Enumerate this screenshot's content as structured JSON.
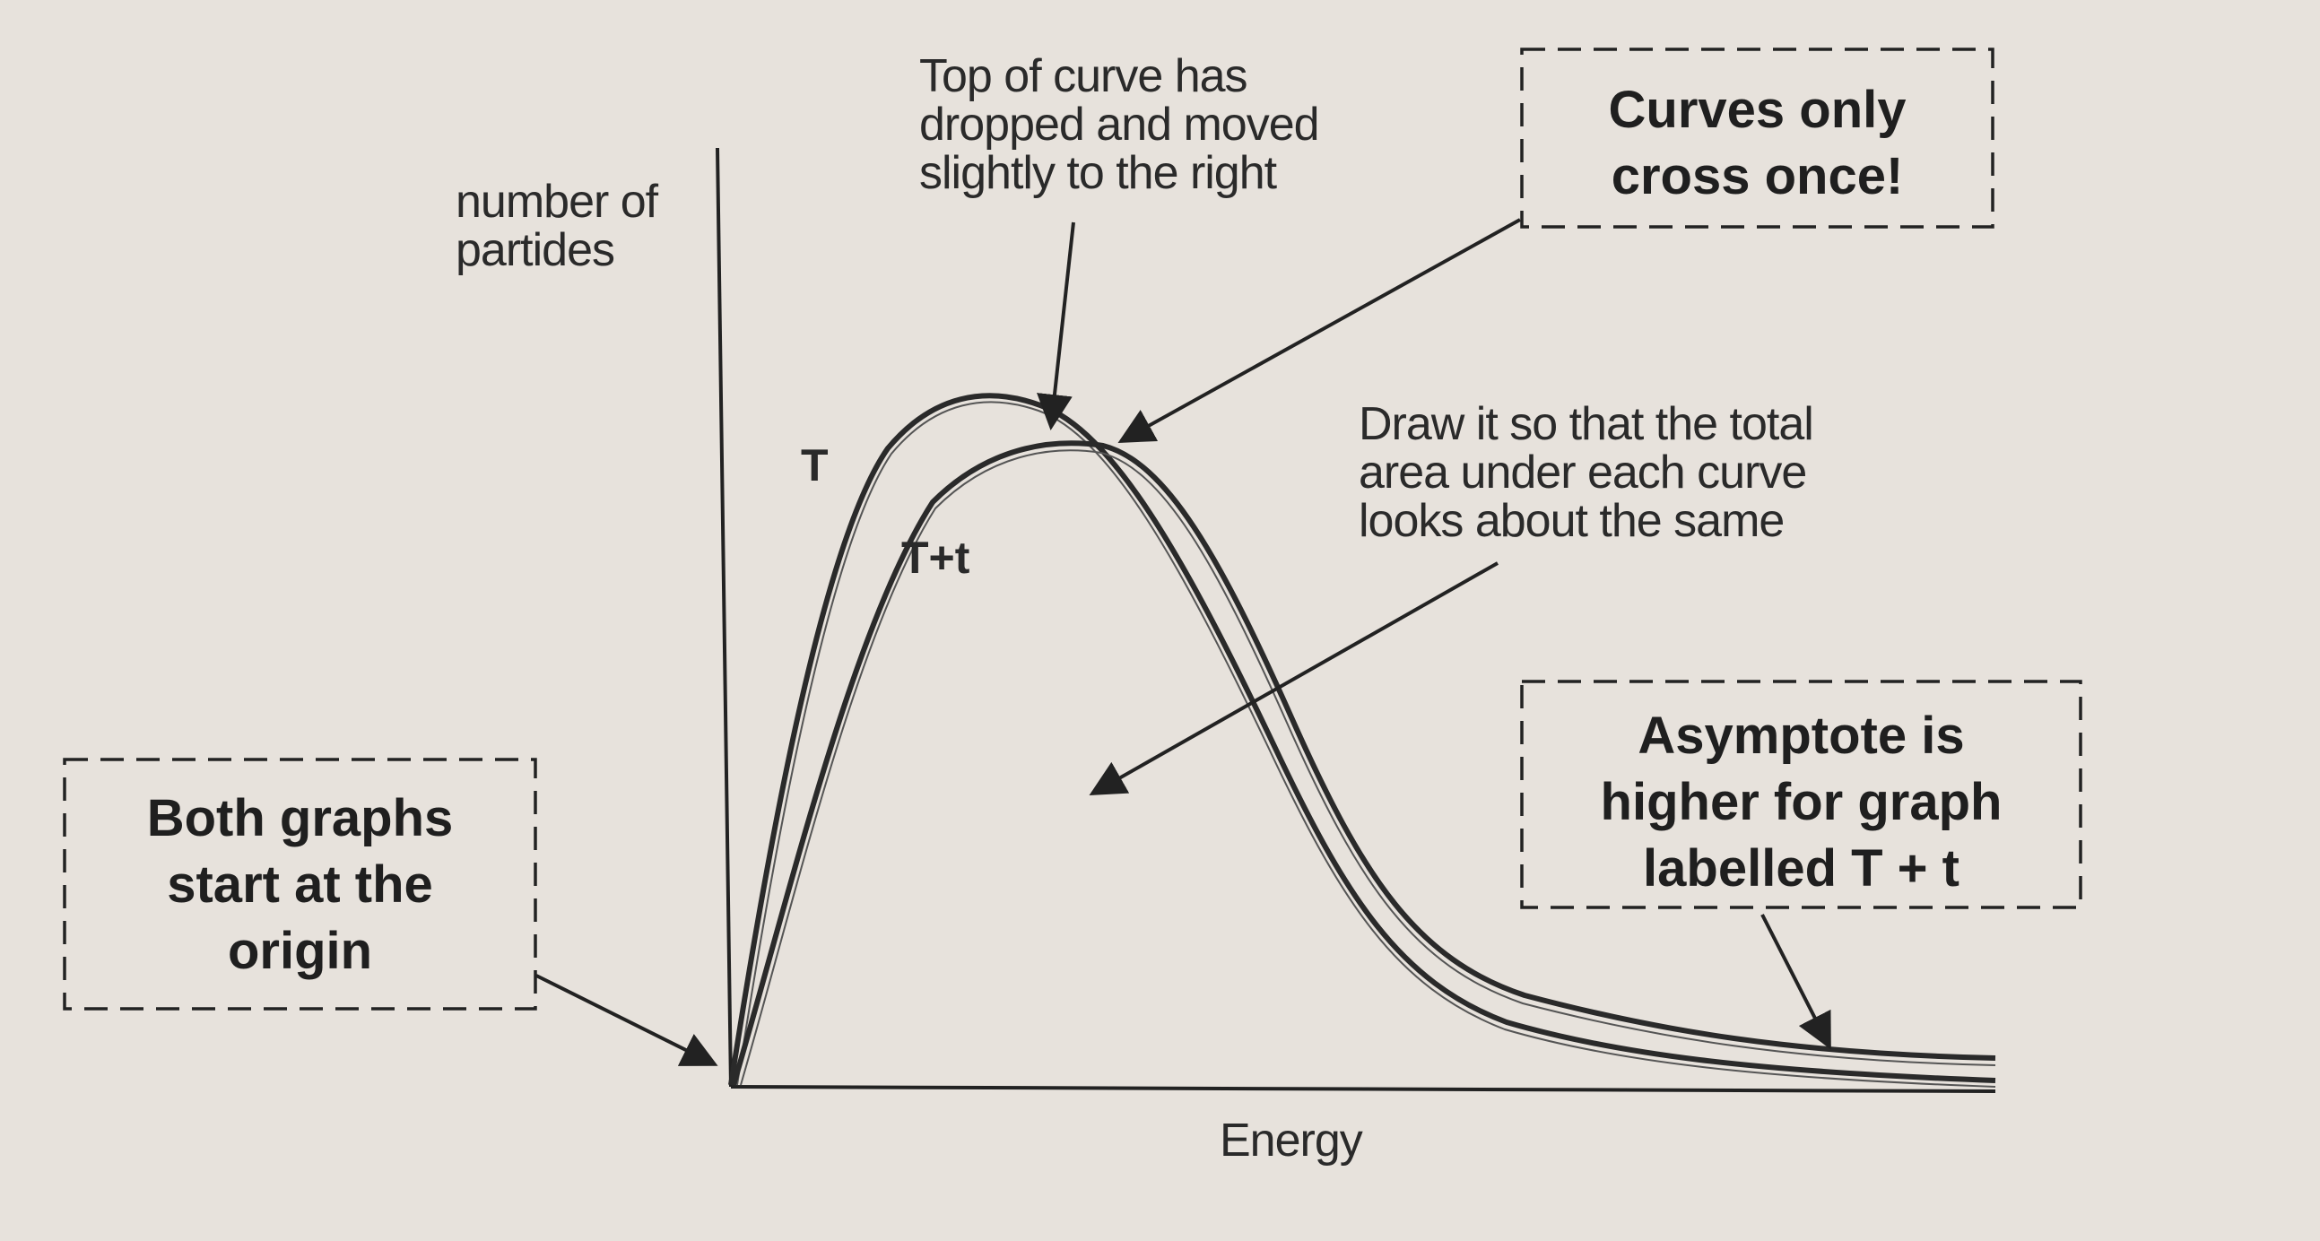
{
  "axes": {
    "y_label_lines": [
      "number of",
      "partides"
    ],
    "x_label": "Energy"
  },
  "curves": {
    "t_label": "T",
    "tt_label": "T+t"
  },
  "annotations": {
    "top_of_curve_lines": [
      "Top of curve has",
      "dropped and moved",
      "slightly to the right"
    ],
    "cross_once_lines": [
      "Curves only",
      "cross once!"
    ],
    "area_lines": [
      "Draw it so that the total",
      "area under each curve",
      "looks about the same"
    ],
    "asymptote_lines": [
      "Asymptote is",
      "higher for graph",
      "labelled T + t"
    ],
    "origin_lines": [
      "Both graphs",
      "start at the",
      "origin"
    ]
  },
  "colors": {
    "paper": "#e7e2dc",
    "ink": "#2a2a2a"
  }
}
